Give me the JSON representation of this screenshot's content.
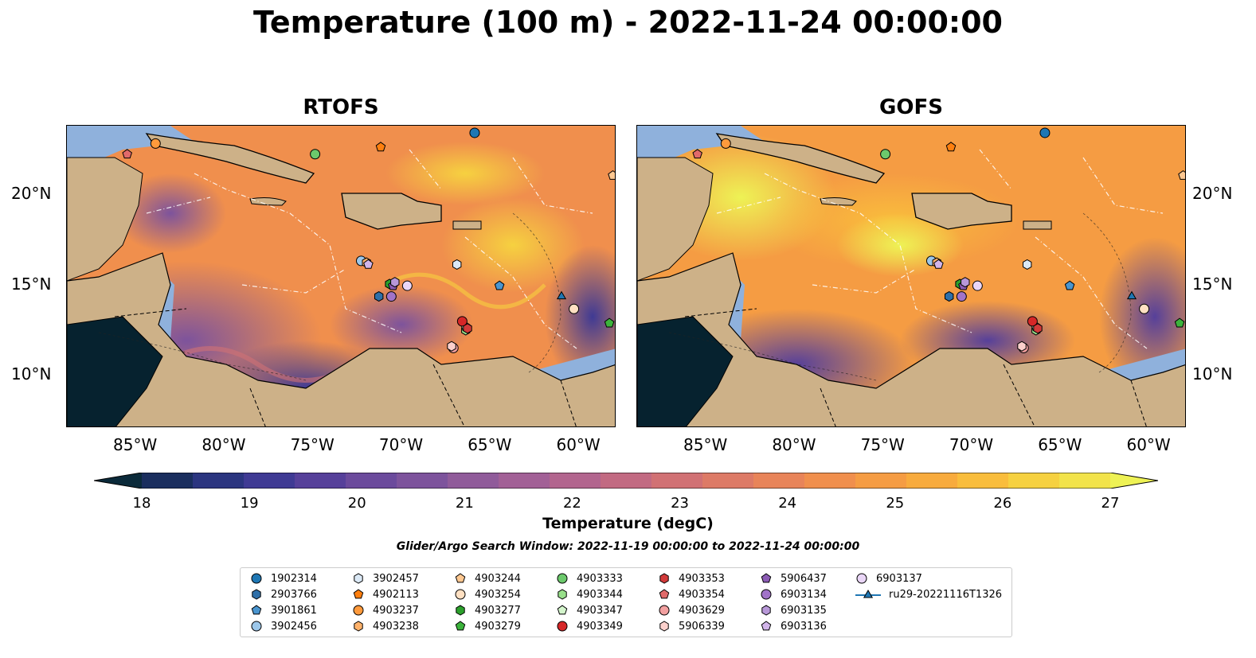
{
  "title": "Temperature (100 m) - 2022-11-24 00:00:00",
  "panels": [
    {
      "id": "rtofs",
      "title": "RTOFS"
    },
    {
      "id": "gofs",
      "title": "GOFS"
    }
  ],
  "x_ticks": [
    "85°W",
    "80°W",
    "75°W",
    "70°W",
    "65°W",
    "60°W"
  ],
  "y_ticks": [
    "20°N",
    "15°N",
    "10°N"
  ],
  "colorbar": {
    "label": "Temperature (degC)",
    "ticks": [
      "18",
      "19",
      "20",
      "21",
      "22",
      "23",
      "24",
      "25",
      "26",
      "27"
    ],
    "min": 18,
    "max": 27,
    "extend": "both",
    "colors": [
      "#0b2a3a",
      "#1a2e5e",
      "#2b3580",
      "#3f3a94",
      "#56409a",
      "#6b4a9c",
      "#7d539c",
      "#905b9a",
      "#a26096",
      "#b2658e",
      "#c26a82",
      "#d17174",
      "#dd7a66",
      "#e88459",
      "#f08f4d",
      "#f59c43",
      "#f8ab3d",
      "#f9bd3c",
      "#f6d140",
      "#f2e34a",
      "#eef255"
    ]
  },
  "search_window": "Glider/Argo Search Window: 2022-11-19 00:00:00 to 2022-11-24 00:00:00",
  "legend": [
    {
      "label": "1902314",
      "marker": "circle",
      "color": "#1f77b4"
    },
    {
      "label": "2903766",
      "marker": "hexagon",
      "color": "#2f6fa8"
    },
    {
      "label": "3901861",
      "marker": "pentagon",
      "color": "#4a95cf"
    },
    {
      "label": "3902456",
      "marker": "circle",
      "color": "#9cc7ea"
    },
    {
      "label": "3902457",
      "marker": "hexagon",
      "color": "#dbe9f6"
    },
    {
      "label": "4902113",
      "marker": "pentagon",
      "color": "#ff7f0e"
    },
    {
      "label": "4903237",
      "marker": "circle",
      "color": "#ff9a3c"
    },
    {
      "label": "4903238",
      "marker": "hexagon",
      "color": "#ffb26b"
    },
    {
      "label": "4903244",
      "marker": "pentagon",
      "color": "#ffc891"
    },
    {
      "label": "4903254",
      "marker": "circle",
      "color": "#ffe0c2"
    },
    {
      "label": "4903277",
      "marker": "hexagon",
      "color": "#2ca02c"
    },
    {
      "label": "4903279",
      "marker": "pentagon",
      "color": "#3cb33c"
    },
    {
      "label": "4903333",
      "marker": "circle",
      "color": "#6cc96c"
    },
    {
      "label": "4903344",
      "marker": "hexagon",
      "color": "#98df8a"
    },
    {
      "label": "4903347",
      "marker": "pentagon",
      "color": "#d4f5cc"
    },
    {
      "label": "4903349",
      "marker": "circle",
      "color": "#d62728"
    },
    {
      "label": "4903353",
      "marker": "hexagon",
      "color": "#d13a3a"
    },
    {
      "label": "4903354",
      "marker": "pentagon",
      "color": "#e06a6a"
    },
    {
      "label": "4903629",
      "marker": "circle",
      "color": "#f2a0a0"
    },
    {
      "label": "5906339",
      "marker": "hexagon",
      "color": "#fbd0cc"
    },
    {
      "label": "5906437",
      "marker": "pentagon",
      "color": "#8c5cb5"
    },
    {
      "label": "6903134",
      "marker": "circle",
      "color": "#a173c8"
    },
    {
      "label": "6903135",
      "marker": "hexagon",
      "color": "#b898d8"
    },
    {
      "label": "6903136",
      "marker": "pentagon",
      "color": "#d2b5ea"
    },
    {
      "label": "6903137",
      "marker": "circle",
      "color": "#ead6f7"
    },
    {
      "label": "ru29-20221116T1326",
      "marker": "triangle-line",
      "color": "#1f77b4"
    }
  ],
  "markers": [
    {
      "id": "1902314",
      "lon": -66.0,
      "lat": 23.6
    },
    {
      "id": "2903766",
      "lon": -71.4,
      "lat": 14.4
    },
    {
      "id": "3901861",
      "lon": -64.6,
      "lat": 15.0
    },
    {
      "id": "3902456",
      "lon": -72.4,
      "lat": 16.4
    },
    {
      "id": "3902457",
      "lon": -67.0,
      "lat": 16.2
    },
    {
      "id": "4902113",
      "lon": -71.3,
      "lat": 22.8
    },
    {
      "id": "4903237",
      "lon": -84.0,
      "lat": 23.0
    },
    {
      "id": "4903238",
      "lon": -72.1,
      "lat": 16.3
    },
    {
      "id": "4903244",
      "lon": -58.2,
      "lat": 21.2
    },
    {
      "id": "4903254",
      "lon": -60.4,
      "lat": 13.7
    },
    {
      "id": "4903277",
      "lon": -70.8,
      "lat": 15.1
    },
    {
      "id": "4903279",
      "lon": -58.4,
      "lat": 12.9
    },
    {
      "id": "4903333",
      "lon": -75.0,
      "lat": 22.4
    },
    {
      "id": "4903344",
      "lon": -66.5,
      "lat": 12.5
    },
    {
      "id": "4903347",
      "lon": -66.5,
      "lat": 12.7
    },
    {
      "id": "4903349",
      "lon": -66.7,
      "lat": 13.0
    },
    {
      "id": "4903353",
      "lon": -66.4,
      "lat": 12.6
    },
    {
      "id": "4903354",
      "lon": -85.6,
      "lat": 22.4
    },
    {
      "id": "4903629",
      "lon": -67.2,
      "lat": 11.5
    },
    {
      "id": "5906339",
      "lon": -67.3,
      "lat": 11.6
    },
    {
      "id": "5906437",
      "lon": -70.6,
      "lat": 15.0
    },
    {
      "id": "6903134",
      "lon": -70.7,
      "lat": 14.4
    },
    {
      "id": "6903135",
      "lon": -70.5,
      "lat": 15.2
    },
    {
      "id": "6903136",
      "lon": -72.0,
      "lat": 16.2
    },
    {
      "id": "6903137",
      "lon": -69.8,
      "lat": 15.0
    },
    {
      "id": "ru29-20221116T1326",
      "lon": -61.1,
      "lat": 14.4
    }
  ],
  "map_extent": {
    "lon": [
      -89,
      -58
    ],
    "lat": [
      7,
      24
    ]
  }
}
